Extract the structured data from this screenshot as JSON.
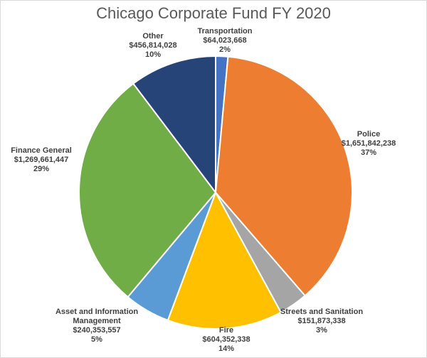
{
  "chart_data": {
    "type": "pie",
    "title": "Chicago Corporate Fund FY 2020",
    "categories": [
      "Transportation",
      "Police",
      "Streets and Sanitation",
      "Fire",
      "Asset and Information Management",
      "Finance General",
      "Other"
    ],
    "values": [
      64023668,
      1651842238,
      151873338,
      604352338,
      240353557,
      1269661447,
      456814028
    ],
    "value_labels": [
      "$64,023,668",
      "$1,651,842,238",
      "$151,873,338",
      "$604,352,338",
      "$240,353,557",
      "$1,269,661,447",
      "$456,814,028"
    ],
    "percent_labels": [
      "2%",
      "37%",
      "3%",
      "14%",
      "5%",
      "29%",
      "10%"
    ],
    "colors": [
      "#4472c4",
      "#ed7d31",
      "#a5a5a5",
      "#ffc000",
      "#5b9bd5",
      "#70ad47",
      "#264478"
    ]
  }
}
